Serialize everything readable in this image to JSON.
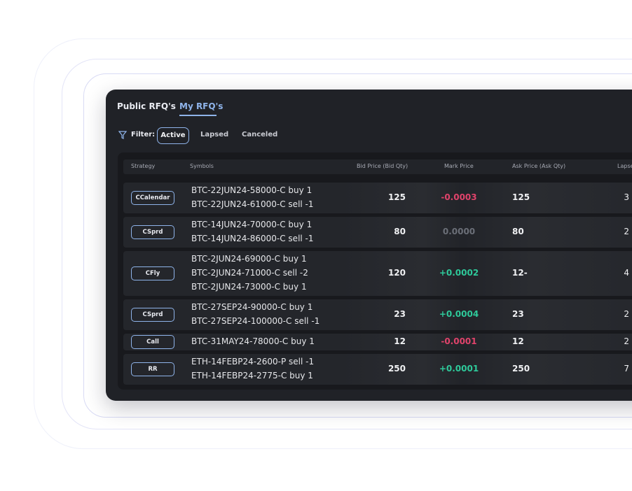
{
  "tabs": [
    "Public RFQ's",
    "My RFQ's"
  ],
  "active_tab": 1,
  "filter": {
    "label": "Filter:",
    "options": [
      "Active",
      "Lapsed",
      "Canceled"
    ],
    "active": 0
  },
  "table": {
    "columns": [
      "Strategy",
      "Symbols",
      "Bid Price (Bid Qty)",
      "Mark Price",
      "Ask Price (Ask Qty)",
      "Lapse"
    ],
    "rows": [
      {
        "strategy": "CCalendar",
        "symbols": [
          "BTC-22JUN24-58000-C buy 1",
          "BTC-22JUN24-61000-C sell -1"
        ],
        "bid": 125,
        "mark": "-0.0003",
        "ask": 125,
        "lapse": 3
      },
      {
        "strategy": "CSprd",
        "symbols": [
          "BTC-14JUN24-70000-C buy 1",
          "BTC-14JUN24-86000-C sell -1"
        ],
        "bid": 80,
        "mark": "0.0000",
        "ask": 80,
        "lapse": 2
      },
      {
        "strategy": "CFly",
        "symbols": [
          "BTC-2JUN24-69000-C buy 1",
          "BTC-2JUN24-71000-C sell -2",
          "BTC-2JUN24-73000-C buy 1"
        ],
        "bid": 120,
        "mark": "+0.0002",
        "ask": "12-",
        "lapse": 4
      },
      {
        "strategy": "CSprd",
        "symbols": [
          "BTC-27SEP24-90000-C buy 1",
          "BTC-27SEP24-100000-C sell -1"
        ],
        "bid": 23,
        "mark": "+0.0004",
        "ask": 23,
        "lapse": 2
      },
      {
        "strategy": "Call",
        "symbols": [
          "BTC-31MAY24-78000-C buy 1"
        ],
        "bid": 12,
        "mark": "-0.0001",
        "ask": 12,
        "lapse": 2
      },
      {
        "strategy": "RR",
        "symbols": [
          "ETH-14FEBP24-2600-P sell -1",
          "ETH-14FEBP24-2775-C buy 1"
        ],
        "bid": 250,
        "mark": "+0.0001",
        "ask": 250,
        "lapse": 7
      }
    ]
  }
}
